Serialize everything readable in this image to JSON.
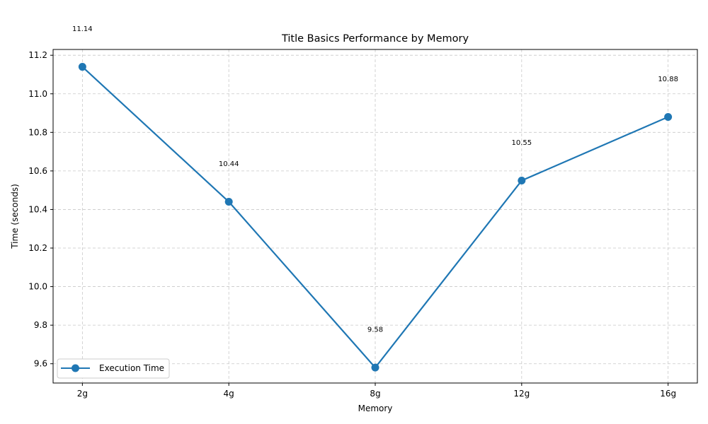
{
  "chart_data": {
    "type": "line",
    "title": "Title Basics Performance by Memory",
    "xlabel": "Memory",
    "ylabel": "Time (seconds)",
    "categories": [
      "2g",
      "4g",
      "8g",
      "12g",
      "16g"
    ],
    "series": [
      {
        "name": "Execution Time",
        "values": [
          11.14,
          10.44,
          9.58,
          10.55,
          10.88
        ]
      }
    ],
    "data_labels": [
      "11.14",
      "10.44",
      "9.58",
      "10.55",
      "10.88"
    ],
    "ylim": [
      9.5,
      11.23
    ],
    "yticks": [
      9.6,
      9.8,
      10.0,
      10.2,
      10.4,
      10.6,
      10.8,
      11.0,
      11.2
    ],
    "ytick_labels": [
      "9.6",
      "9.8",
      "10.0",
      "10.2",
      "10.4",
      "10.6",
      "10.8",
      "11.0",
      "11.2"
    ],
    "grid": true,
    "legend_position": "lower-left",
    "colors": {
      "line": "#1f77b4",
      "grid": "#c8c8c8",
      "axis": "#000000"
    }
  }
}
